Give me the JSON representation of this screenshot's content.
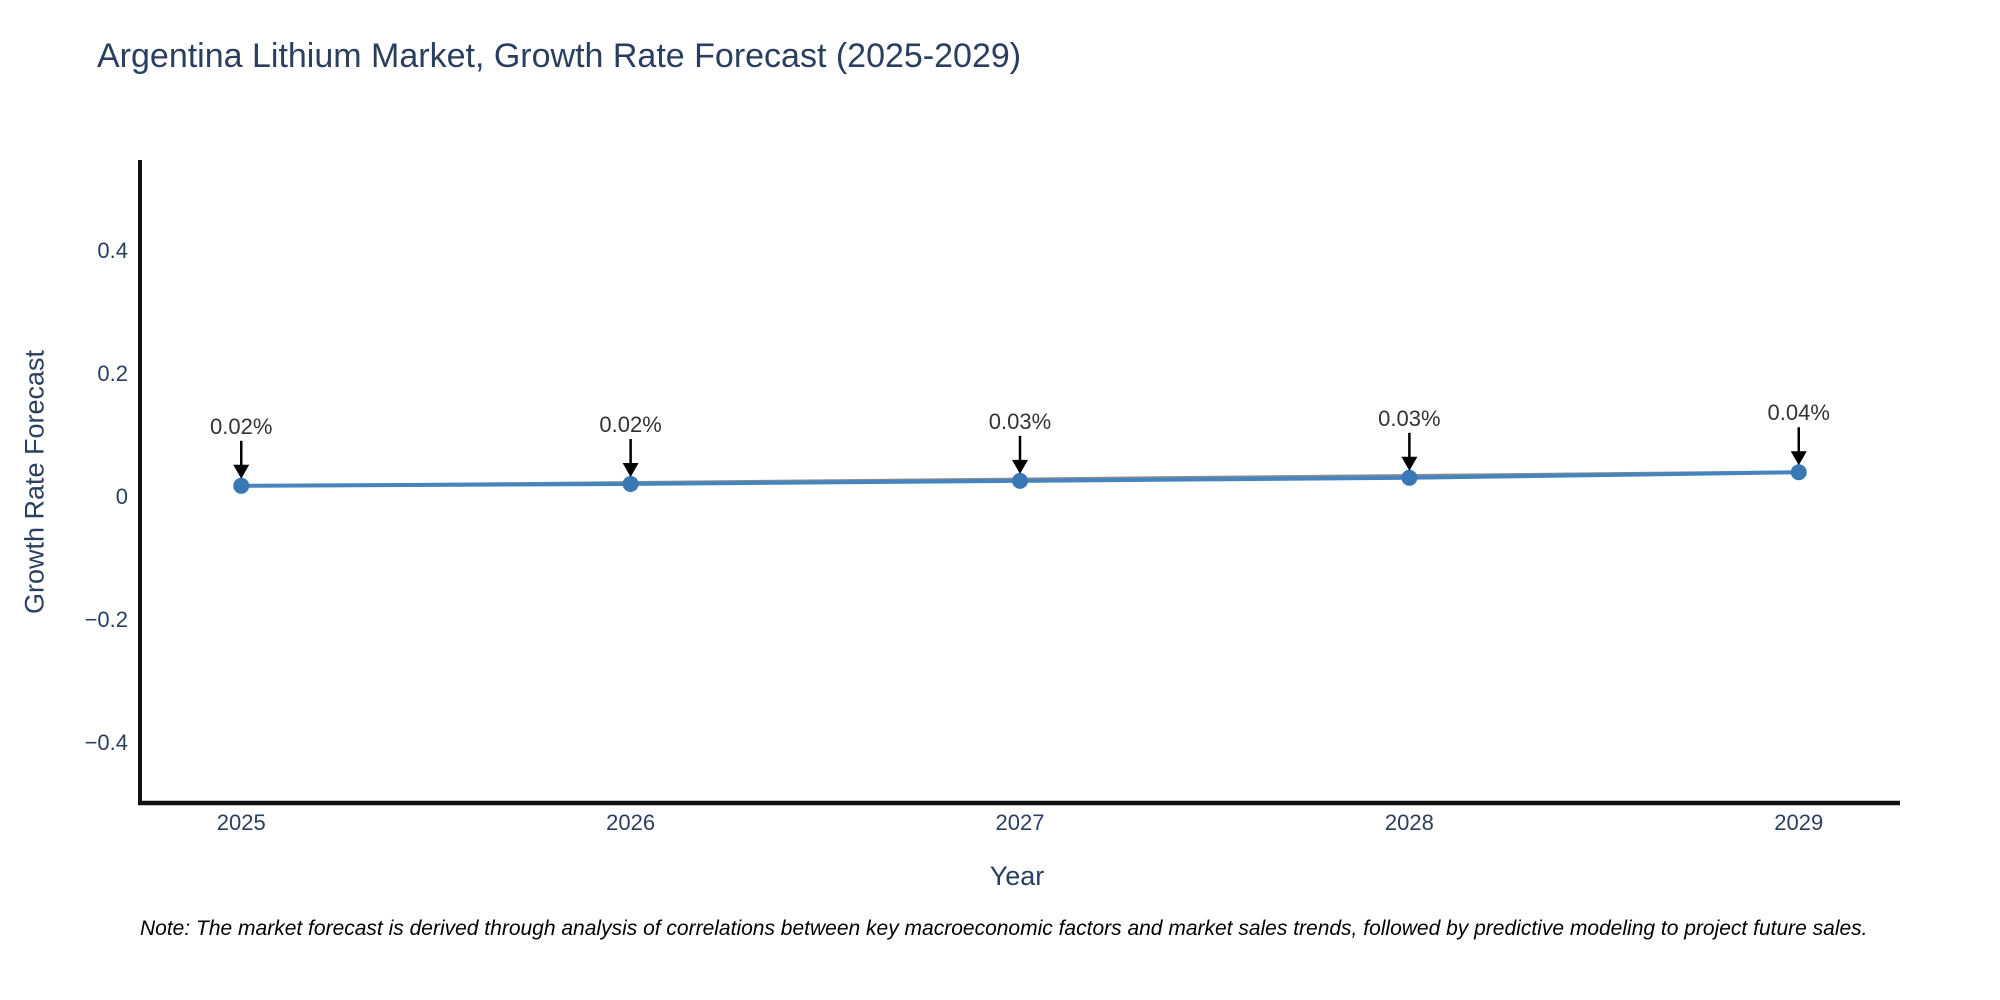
{
  "title": "Argentina Lithium Market, Growth Rate Forecast (2025-2029)",
  "footnote": "Note: The market forecast is derived through analysis of correlations between key macroeconomic factors and market sales trends, followed by predictive modeling to project future sales.",
  "colors": {
    "title_text": "#2a3f5f",
    "tick_text": "#2a3f5f",
    "annotation_text": "#333333",
    "axis_line": "#111111",
    "line": "#4684c0",
    "marker": "#3a78b5",
    "trendline": "#8c8c8c",
    "arrow": "#000000",
    "background": "#ffffff"
  },
  "chart_data": {
    "type": "line",
    "title": "Argentina Lithium Market, Growth Rate Forecast (2025-2029)",
    "xlabel": "Year",
    "ylabel": "Growth Rate Forecast",
    "x": [
      2025,
      2026,
      2027,
      2028,
      2029
    ],
    "values": [
      0.018,
      0.021,
      0.026,
      0.031,
      0.04
    ],
    "point_labels": [
      "0.02%",
      "0.02%",
      "0.03%",
      "0.03%",
      "0.04%"
    ],
    "xtick_labels": [
      "2025",
      "2026",
      "2027",
      "2028",
      "2029"
    ],
    "yticks": [
      0.4,
      0.2,
      0,
      -0.2,
      -0.4
    ],
    "ytick_labels": [
      "0.4",
      "0.2",
      "0",
      "−0.2",
      "−0.4"
    ],
    "xlim": [
      2024.74,
      2029.26
    ],
    "ylim": [
      -0.497,
      0.547
    ],
    "grid": false,
    "legend": "none",
    "annotations_have_arrows": true,
    "trendline": {
      "x": [
        2025,
        2029
      ],
      "y": [
        0.0175,
        0.0405
      ]
    }
  }
}
